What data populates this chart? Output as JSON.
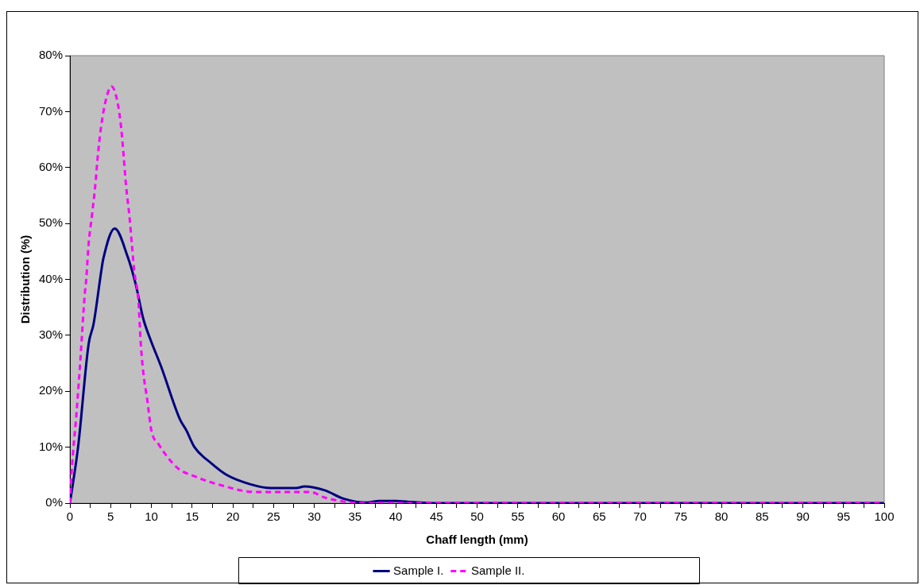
{
  "chart_data": {
    "type": "line",
    "xlabel": "Chaff length (mm)",
    "ylabel": "Distribution (%)",
    "series": [
      {
        "name": "Sample I.",
        "color": "#000080",
        "line_style": "solid",
        "x": [
          0,
          1.0,
          2.3,
          2.9,
          3.9,
          4.1,
          5.5,
          7.1,
          8.1,
          9.0,
          9.9,
          11.2,
          13.5,
          14.3,
          15.3,
          17.3,
          19.3,
          22.1,
          24.7,
          27.8,
          28.8,
          31.3,
          33.6,
          36.4,
          38,
          40,
          42,
          45,
          50,
          60,
          70,
          80,
          90,
          100
        ],
        "values": [
          0,
          10,
          28.5,
          32,
          42,
          43.7,
          49.1,
          44,
          39,
          33,
          29.2,
          24.4,
          15,
          13,
          10,
          7.2,
          5,
          3.4,
          2.7,
          2.7,
          3,
          2.3,
          0.8,
          0.1,
          0.4,
          0.4,
          0.2,
          0,
          0,
          0,
          0,
          0,
          0,
          0
        ]
      },
      {
        "name": "Sample II.",
        "color": "#ff00ff",
        "line_style": "dashed",
        "x": [
          0,
          0.2,
          0.8,
          1.3,
          1.8,
          2.0,
          2.3,
          2.7,
          3.1,
          3.4,
          3.8,
          4.4,
          5.1,
          5.8,
          6.3,
          6.6,
          6.9,
          7.3,
          7.6,
          7.9,
          8.4,
          8.7,
          9.0,
          9.5,
          10.0,
          10.9,
          13.2,
          15.3,
          18.3,
          22.7,
          29.5,
          31.3,
          33.6,
          36,
          40,
          50,
          60,
          70,
          80,
          90,
          100
        ],
        "values": [
          0,
          5.5,
          16,
          26,
          37,
          40,
          46.4,
          51.4,
          56.6,
          61.7,
          67,
          72,
          74.5,
          72,
          67,
          62,
          56.6,
          51.4,
          46.4,
          41.5,
          36.4,
          28.5,
          23.5,
          18.4,
          13,
          10.5,
          6.3,
          4.8,
          3.3,
          2,
          2,
          1,
          0.3,
          0,
          0,
          0,
          0,
          0,
          0,
          0,
          0
        ]
      }
    ],
    "xlim": [
      0,
      100
    ],
    "xticks": [
      0,
      {
        "value": 2.5,
        "label": null
      },
      5,
      {
        "value": 7.5,
        "label": null
      },
      10,
      {
        "value": 12.5,
        "label": null
      },
      15,
      {
        "value": 17.5,
        "label": null
      },
      20,
      {
        "value": 22.5,
        "label": null
      },
      25,
      {
        "value": 27.5,
        "label": null
      },
      30,
      {
        "value": 32.5,
        "label": null
      },
      35,
      {
        "value": 37.5,
        "label": null
      },
      40,
      {
        "value": 42.5,
        "label": null
      },
      45,
      {
        "value": 47.5,
        "label": null
      },
      50,
      {
        "value": 52.5,
        "label": null
      },
      55,
      {
        "value": 57.5,
        "label": null
      },
      60,
      {
        "value": 62.5,
        "label": null
      },
      65,
      {
        "value": 67.5,
        "label": null
      },
      70,
      {
        "value": 72.5,
        "label": null
      },
      75,
      {
        "value": 77.5,
        "label": null
      },
      80,
      {
        "value": 82.5,
        "label": null
      },
      85,
      {
        "value": 87.5,
        "label": null
      },
      90,
      {
        "value": 92.5,
        "label": null
      },
      95,
      {
        "value": 97.5,
        "label": null
      },
      100
    ],
    "ylim": [
      0,
      80
    ],
    "yticks": [
      {
        "value": 0,
        "label": "0%"
      },
      {
        "value": 10,
        "label": "10%"
      },
      {
        "value": 20,
        "label": "20%"
      },
      {
        "value": 30,
        "label": "30%"
      },
      {
        "value": 40,
        "label": "40%"
      },
      {
        "value": 50,
        "label": "50%"
      },
      {
        "value": 60,
        "label": "60%"
      },
      {
        "value": 70,
        "label": "70%"
      },
      {
        "value": 80,
        "label": "80%"
      }
    ],
    "grid": false,
    "legend": "bottom",
    "marker": "none"
  }
}
